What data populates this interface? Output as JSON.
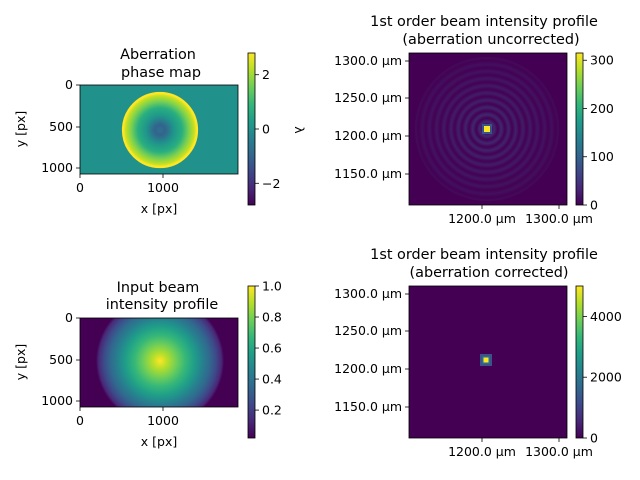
{
  "colors": {
    "viridis": [
      "#440154",
      "#482878",
      "#3e4989",
      "#31688e",
      "#26828e",
      "#1f9e89",
      "#35b779",
      "#6ece58",
      "#b5de2b",
      "#fde725"
    ]
  },
  "chart_data": [
    {
      "type": "heatmap",
      "title_lines": [
        "Aberration",
        "phase map"
      ],
      "xlabel": "x [px]",
      "ylabel": "y [px]",
      "x_ticks": [
        "0",
        "1000"
      ],
      "y_ticks": [
        "0",
        "500",
        "1000"
      ],
      "x_range": [
        0,
        1920
      ],
      "y_range": [
        1080,
        0
      ],
      "colorbar": {
        "range": [
          -2.8,
          2.8
        ],
        "ticks": [
          "2",
          "0",
          "−2"
        ],
        "tick_values": [
          2,
          0,
          -2
        ],
        "label": "λ",
        "colormap": "viridis"
      }
    },
    {
      "type": "heatmap",
      "title_lines": [
        "1st order beam intensity profile",
        "(aberration uncorrected)"
      ],
      "xlabel": "",
      "ylabel": "",
      "x_ticks": [
        "1200.0 μm",
        "1300.0 μm"
      ],
      "y_ticks": [
        "1300.0 μm",
        "1250.0 μm",
        "1200.0 μm",
        "1150.0 μm"
      ],
      "x_range": [
        1105,
        1310
      ],
      "y_range": [
        1105,
        1310
      ],
      "colorbar": {
        "range": [
          0,
          315
        ],
        "ticks": [
          "300",
          "200",
          "100",
          "0"
        ],
        "tick_values": [
          300,
          200,
          100,
          0
        ],
        "label": "",
        "colormap": "viridis"
      }
    },
    {
      "type": "heatmap",
      "title_lines": [
        "Input beam",
        "intensity profile"
      ],
      "xlabel": "x [px]",
      "ylabel": "y [px]",
      "x_ticks": [
        "0",
        "1000"
      ],
      "y_ticks": [
        "0",
        "500",
        "1000"
      ],
      "x_range": [
        0,
        1920
      ],
      "y_range": [
        1080,
        0
      ],
      "colorbar": {
        "range": [
          0.02,
          1.0
        ],
        "ticks": [
          "1.0",
          "0.8",
          "0.6",
          "0.4",
          "0.2"
        ],
        "tick_values": [
          1.0,
          0.8,
          0.6,
          0.4,
          0.2
        ],
        "label": "",
        "colormap": "viridis"
      }
    },
    {
      "type": "heatmap",
      "title_lines": [
        "1st order beam intensity profile",
        "(aberration corrected)"
      ],
      "xlabel": "",
      "ylabel": "",
      "x_ticks": [
        "1200.0 μm",
        "1300.0 μm"
      ],
      "y_ticks": [
        "1300.0 μm",
        "1250.0 μm",
        "1200.0 μm",
        "1150.0 μm"
      ],
      "x_range": [
        1105,
        1310
      ],
      "y_range": [
        1105,
        1310
      ],
      "colorbar": {
        "range": [
          0,
          5000
        ],
        "ticks": [
          "4000",
          "2000",
          "0"
        ],
        "tick_values": [
          4000,
          2000,
          0
        ],
        "label": "",
        "colormap": "viridis"
      }
    }
  ]
}
